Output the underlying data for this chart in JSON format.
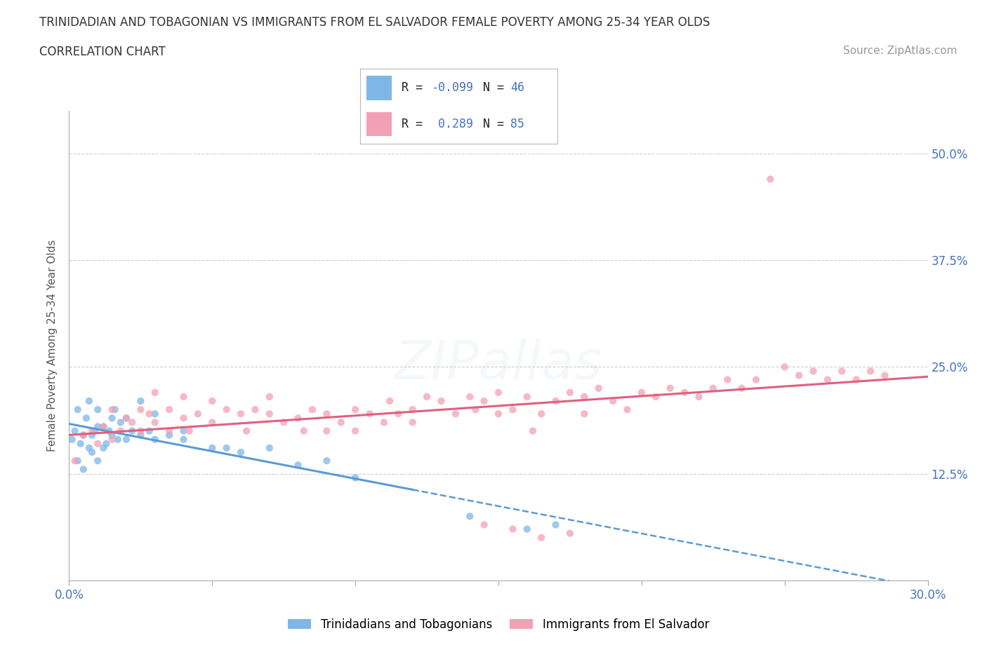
{
  "title": "TRINIDADIAN AND TOBAGONIAN VS IMMIGRANTS FROM EL SALVADOR FEMALE POVERTY AMONG 25-34 YEAR OLDS",
  "subtitle": "CORRELATION CHART",
  "source": "Source: ZipAtlas.com",
  "ylabel": "Female Poverty Among 25-34 Year Olds",
  "xmin": 0.0,
  "xmax": 0.3,
  "ymin": 0.0,
  "ymax": 0.55,
  "yticks": [
    0.0,
    0.125,
    0.25,
    0.375,
    0.5
  ],
  "ytick_labels": [
    "",
    "12.5%",
    "25.0%",
    "37.5%",
    "50.0%"
  ],
  "legend_label1": "Trinidadians and Tobagonians",
  "legend_label2": "Immigrants from El Salvador",
  "R1": -0.099,
  "N1": 46,
  "R2": 0.289,
  "N2": 85,
  "color1": "#7EB6E8",
  "color2": "#F4A0B4",
  "line1_color": "#5B9BD5",
  "line2_color": "#E06080",
  "background_color": "#FFFFFF",
  "title_fontsize": 12,
  "subtitle_fontsize": 12,
  "source_fontsize": 11,
  "axis_label_fontsize": 11,
  "tick_fontsize": 12,
  "watermark_text": "ZIPallas",
  "watermark_fontsize": 55,
  "watermark_alpha": 0.18,
  "scatter_size": 55,
  "scatter_alpha": 0.75
}
